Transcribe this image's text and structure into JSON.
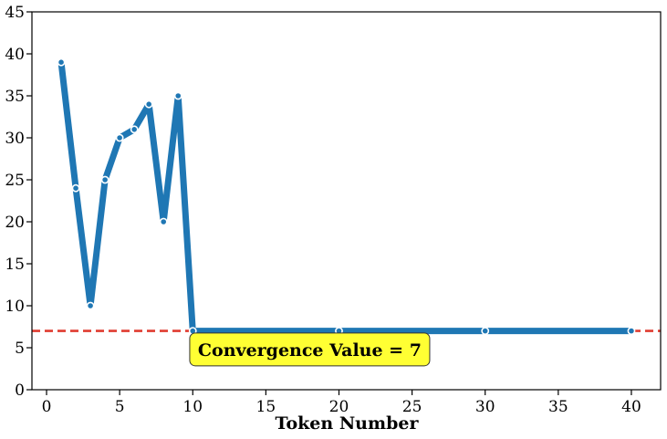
{
  "chart_data": {
    "type": "line",
    "xlabel": "Token Number",
    "ylabel": "",
    "xlim": [
      -1,
      42
    ],
    "ylim": [
      0,
      45
    ],
    "xticks": [
      0,
      5,
      10,
      15,
      20,
      25,
      30,
      35,
      40
    ],
    "yticks": [
      0,
      5,
      10,
      15,
      20,
      25,
      30,
      35,
      40,
      45
    ],
    "grid": false,
    "series": [
      {
        "color": "#1f77b4",
        "x": [
          1,
          2,
          3,
          4,
          5,
          6,
          7,
          8,
          9,
          10,
          20,
          30,
          40
        ],
        "y": [
          39,
          24,
          10,
          25,
          30,
          31,
          34,
          20,
          35,
          7,
          7,
          7,
          7
        ]
      }
    ],
    "reference_line": {
      "y": 7,
      "color": "#e03c31",
      "style": "dashed"
    },
    "annotation": {
      "text": "Convergence Value = 7",
      "x": 18,
      "y": 4.8,
      "box_color": "#ffff33"
    }
  }
}
